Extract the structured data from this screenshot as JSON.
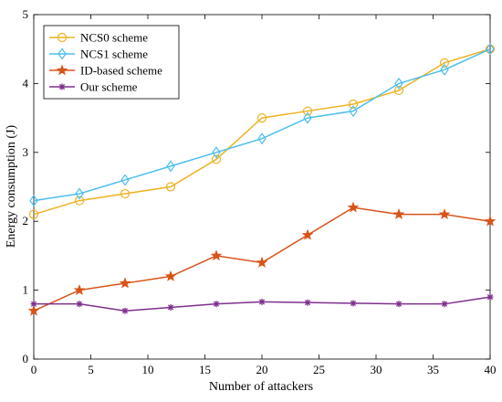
{
  "chart_data": {
    "type": "line",
    "xlabel": "Number of attackers",
    "ylabel": "Energy consumption (J)",
    "xlim": [
      0,
      40
    ],
    "ylim": [
      0,
      5
    ],
    "xticks": [
      0,
      5,
      10,
      15,
      20,
      25,
      30,
      35,
      40
    ],
    "yticks": [
      0,
      1,
      2,
      3,
      4,
      5
    ],
    "grid": false,
    "legend_position": "top-left",
    "x": [
      0,
      4,
      8,
      12,
      16,
      20,
      24,
      28,
      32,
      36,
      40
    ],
    "series": [
      {
        "name": "NCS0 scheme",
        "color": "#EDB120",
        "marker": "circle",
        "values": [
          2.1,
          2.3,
          2.4,
          2.5,
          2.9,
          3.5,
          3.6,
          3.7,
          3.9,
          4.3,
          4.5
        ]
      },
      {
        "name": "NCS1 scheme",
        "color": "#4DBEEE",
        "marker": "diamond",
        "values": [
          2.3,
          2.4,
          2.6,
          2.8,
          3.0,
          3.2,
          3.5,
          3.6,
          4.0,
          4.2,
          4.5
        ]
      },
      {
        "name": "ID-based scheme",
        "color": "#D95319",
        "marker": "star",
        "values": [
          0.7,
          1.0,
          1.1,
          1.2,
          1.5,
          1.4,
          1.8,
          2.2,
          2.1,
          2.1,
          2.0
        ]
      },
      {
        "name": "Our scheme",
        "color": "#7E2F8E",
        "marker": "asterisk",
        "values": [
          0.8,
          0.8,
          0.7,
          0.75,
          0.8,
          0.83,
          0.82,
          0.81,
          0.8,
          0.8,
          0.9
        ]
      }
    ]
  }
}
